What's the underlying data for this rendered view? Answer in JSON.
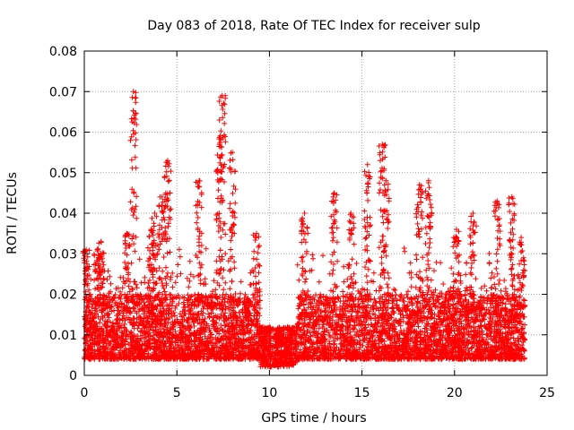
{
  "chart_data": {
    "type": "scatter",
    "title": "Day 083 of 2018, Rate Of TEC Index for receiver sulp",
    "xlabel": "GPS time / hours",
    "ylabel": "ROTI / TECUs",
    "xlim": [
      0,
      25
    ],
    "ylim": [
      0,
      0.08
    ],
    "x_ticks": [
      0,
      5,
      10,
      15,
      20,
      25
    ],
    "x_tick_labels": [
      "0",
      "5",
      "10",
      "15",
      "20",
      "25"
    ],
    "y_ticks": [
      0,
      0.01,
      0.02,
      0.03,
      0.04,
      0.05,
      0.06,
      0.07,
      0.08
    ],
    "y_tick_labels": [
      "0",
      "0.01",
      "0.02",
      "0.03",
      "0.04",
      "0.05",
      "0.06",
      "0.07",
      "0.08"
    ],
    "grid": true,
    "marker": "+",
    "marker_color": "#ff0000",
    "series": [
      {
        "name": "ROTI",
        "x_range_hours": [
          0,
          23.8
        ],
        "typical_range": [
          0.004,
          0.02
        ],
        "quiet_interval_hours": [
          9.5,
          11.5
        ],
        "quiet_level": [
          0.002,
          0.012
        ],
        "peaks": [
          {
            "x": 0.1,
            "y": 0.031
          },
          {
            "x": 0.7,
            "y": 0.031
          },
          {
            "x": 0.9,
            "y": 0.033
          },
          {
            "x": 2.3,
            "y": 0.035
          },
          {
            "x": 2.65,
            "y": 0.07
          },
          {
            "x": 3.6,
            "y": 0.036
          },
          {
            "x": 3.8,
            "y": 0.04
          },
          {
            "x": 4.2,
            "y": 0.044
          },
          {
            "x": 4.5,
            "y": 0.053
          },
          {
            "x": 6.2,
            "y": 0.048
          },
          {
            "x": 7.3,
            "y": 0.057
          },
          {
            "x": 7.45,
            "y": 0.069
          },
          {
            "x": 8.0,
            "y": 0.055
          },
          {
            "x": 9.3,
            "y": 0.035
          },
          {
            "x": 11.9,
            "y": 0.04
          },
          {
            "x": 13.5,
            "y": 0.045
          },
          {
            "x": 14.4,
            "y": 0.04
          },
          {
            "x": 15.3,
            "y": 0.052
          },
          {
            "x": 16.1,
            "y": 0.057
          },
          {
            "x": 16.3,
            "y": 0.048
          },
          {
            "x": 18.1,
            "y": 0.047
          },
          {
            "x": 18.6,
            "y": 0.048
          },
          {
            "x": 20.1,
            "y": 0.036
          },
          {
            "x": 21.0,
            "y": 0.04
          },
          {
            "x": 22.3,
            "y": 0.043
          },
          {
            "x": 23.1,
            "y": 0.044
          },
          {
            "x": 23.6,
            "y": 0.034
          }
        ]
      }
    ]
  }
}
